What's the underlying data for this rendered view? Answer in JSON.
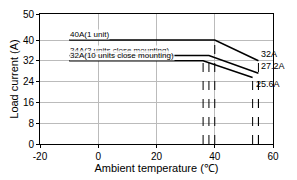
{
  "chart_data": {
    "type": "line",
    "x_label": "Ambient temperature (℃)",
    "y_label": "Load current (A)",
    "xlim": [
      -20,
      60
    ],
    "xticks": [
      -20,
      0,
      20,
      40,
      60
    ],
    "ylim": [
      0,
      50
    ],
    "yticks": [
      0,
      8,
      16,
      24,
      32,
      40,
      50
    ],
    "grid": true,
    "series": [
      {
        "name": "40A(1 unit)",
        "color": "#000000",
        "x": [
          -10,
          40,
          55
        ],
        "values": [
          40,
          40,
          32
        ],
        "value_labels": [
          null,
          null,
          "32A"
        ]
      },
      {
        "name": "34A(3 units close mounting)",
        "color": "#000000",
        "x": [
          -10,
          38,
          55
        ],
        "values": [
          34,
          34,
          27.2
        ],
        "value_labels": [
          null,
          null,
          "27.2A"
        ]
      },
      {
        "name": "32A(10 units close mounting)",
        "color": "#000000",
        "x": [
          -10,
          36,
          53
        ],
        "values": [
          32,
          32,
          25.6
        ],
        "value_labels": [
          null,
          null,
          "25.6A"
        ]
      }
    ]
  }
}
